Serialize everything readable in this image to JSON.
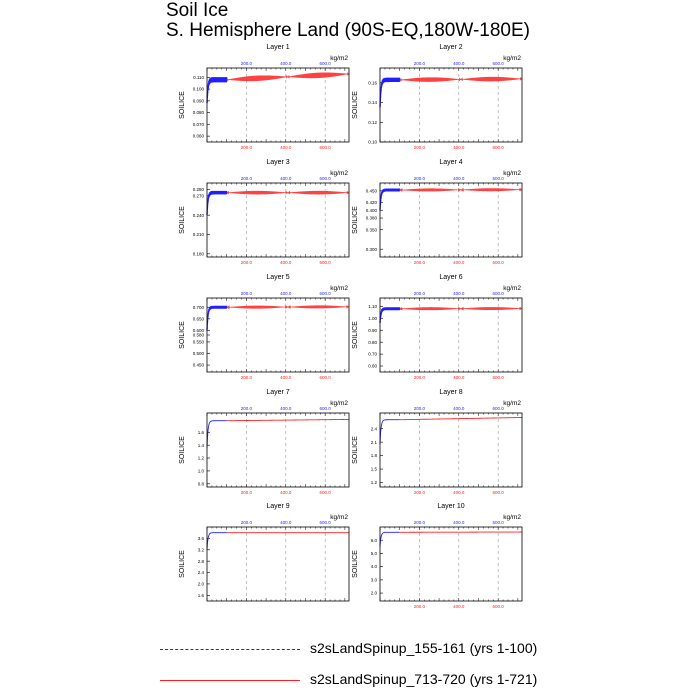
{
  "figure": {
    "title_line1": "Soil Ice",
    "title_line2": "S. Hemisphere Land (90S-EQ,180W-180E)",
    "colors": {
      "run1": "#1f1fff",
      "run2": "#ff2020",
      "axis": "#000000",
      "grid": "#9a9a9a"
    }
  },
  "legend": [
    {
      "label": "s2sLandSpinup_155-161 (yrs 1-100)",
      "style": "dashed",
      "color": "#1f1fff"
    },
    {
      "label": "s2sLandSpinup_713-720 (yrs 1-721)",
      "style": "solid",
      "color": "#ff2020"
    }
  ],
  "chart_data": [
    {
      "type": "line",
      "title": "Layer 1",
      "ylabel": "SOILICE",
      "top_axis_label": "kg/m2",
      "xlim": [
        0,
        721
      ],
      "top_xticks": [
        "200.0",
        "400.0",
        "600.0"
      ],
      "bottom_xticks": [
        "200.0",
        "400.0",
        "600.0"
      ],
      "ylim": [
        0.055,
        0.118
      ],
      "yticks": [
        "0.060",
        "0.070",
        "0.080",
        "0.090",
        "0.100",
        "0.110"
      ],
      "series": [
        {
          "name": "s2sLandSpinup_155-161",
          "start": 0.088,
          "end": 0.108
        },
        {
          "name": "s2sLandSpinup_713-720",
          "start": 0.108,
          "end": 0.113
        }
      ]
    },
    {
      "type": "line",
      "title": "Layer 2",
      "ylabel": "SOILICE",
      "top_axis_label": "kg/m2",
      "xlim": [
        0,
        721
      ],
      "top_xticks": [
        "200.0",
        "400.0",
        "600.0"
      ],
      "bottom_xticks": [
        "200.0",
        "400.0",
        "600.0"
      ],
      "ylim": [
        0.1,
        0.175
      ],
      "yticks": [
        "0.10",
        "0.12",
        "0.14",
        "0.16"
      ],
      "series": [
        {
          "name": "s2sLandSpinup_155-161",
          "start": 0.135,
          "end": 0.163
        },
        {
          "name": "s2sLandSpinup_713-720",
          "start": 0.163,
          "end": 0.164
        }
      ]
    },
    {
      "type": "line",
      "title": "Layer 3",
      "ylabel": "SOILICE",
      "top_axis_label": "kg/m2",
      "xlim": [
        0,
        721
      ],
      "top_xticks": [
        "200.0",
        "400.0",
        "600.0"
      ],
      "bottom_xticks": [
        "200.0",
        "400.0",
        "600.0"
      ],
      "ylim": [
        0.175,
        0.29
      ],
      "yticks": [
        "0.180",
        "0.210",
        "0.240",
        "0.270",
        "0.280"
      ],
      "series": [
        {
          "name": "s2sLandSpinup_155-161",
          "start": 0.24,
          "end": 0.275
        },
        {
          "name": "s2sLandSpinup_713-720",
          "start": 0.275,
          "end": 0.275
        }
      ]
    },
    {
      "type": "line",
      "title": "Layer 4",
      "ylabel": "SOILICE",
      "top_axis_label": "kg/m2",
      "xlim": [
        0,
        721
      ],
      "top_xticks": [
        "200.0",
        "400.0",
        "600.0"
      ],
      "bottom_xticks": [
        "200.0",
        "400.0",
        "600.0"
      ],
      "ylim": [
        0.28,
        0.47
      ],
      "yticks": [
        "0.300",
        "0.350",
        "0.380",
        "0.400",
        "0.420",
        "0.450"
      ],
      "series": [
        {
          "name": "s2sLandSpinup_155-161",
          "start": 0.4,
          "end": 0.452
        },
        {
          "name": "s2sLandSpinup_713-720",
          "start": 0.452,
          "end": 0.453
        }
      ]
    },
    {
      "type": "line",
      "title": "Layer 5",
      "ylabel": "SOILICE",
      "top_axis_label": "kg/m2",
      "xlim": [
        0,
        721
      ],
      "top_xticks": [
        "200.0",
        "400.0",
        "600.0"
      ],
      "bottom_xticks": [
        "200.0",
        "400.0",
        "600.0"
      ],
      "ylim": [
        0.42,
        0.74
      ],
      "yticks": [
        "0.450",
        "0.500",
        "0.550",
        "0.580",
        "0.600",
        "0.650",
        "0.700"
      ],
      "series": [
        {
          "name": "s2sLandSpinup_155-161",
          "start": 0.6,
          "end": 0.7
        },
        {
          "name": "s2sLandSpinup_713-720",
          "start": 0.7,
          "end": 0.702
        }
      ]
    },
    {
      "type": "line",
      "title": "Layer 6",
      "ylabel": "SOILICE",
      "top_axis_label": "kg/m2",
      "xlim": [
        0,
        721
      ],
      "top_xticks": [
        "200.0",
        "400.0",
        "600.0"
      ],
      "bottom_xticks": [
        "200.0",
        "400.0",
        "600.0"
      ],
      "ylim": [
        0.55,
        1.17
      ],
      "yticks": [
        "0.60",
        "0.70",
        "0.80",
        "0.90",
        "1.00",
        "1.10"
      ],
      "series": [
        {
          "name": "s2sLandSpinup_155-161",
          "start": 0.96,
          "end": 1.08
        },
        {
          "name": "s2sLandSpinup_713-720",
          "start": 1.08,
          "end": 1.082
        }
      ]
    },
    {
      "type": "line",
      "title": "Layer 7",
      "ylabel": "SOILICE",
      "top_axis_label": "kg/m2",
      "xlim": [
        0,
        721
      ],
      "top_xticks": [
        "200.0",
        "400.0",
        "600.0"
      ],
      "bottom_xticks": [
        "200.0",
        "400.0",
        "600.0"
      ],
      "ylim": [
        0.75,
        1.9
      ],
      "yticks": [
        "0.8",
        "1.0",
        "1.2",
        "1.4",
        "1.6"
      ],
      "series": [
        {
          "name": "s2sLandSpinup_155-161",
          "start": 1.35,
          "end": 1.78
        },
        {
          "name": "s2sLandSpinup_713-720",
          "start": 1.78,
          "end": 1.8
        }
      ]
    },
    {
      "type": "line",
      "title": "Layer 8",
      "ylabel": "SOILICE",
      "top_axis_label": "kg/m2",
      "xlim": [
        0,
        721
      ],
      "top_xticks": [
        "200.0",
        "400.0",
        "600.0"
      ],
      "bottom_xticks": [
        "200.0",
        "400.0",
        "600.0"
      ],
      "ylim": [
        1.1,
        2.75
      ],
      "yticks": [
        "1.2",
        "1.5",
        "1.8",
        "2.1",
        "2.4"
      ],
      "series": [
        {
          "name": "s2sLandSpinup_155-161",
          "start": 2.05,
          "end": 2.6
        },
        {
          "name": "s2sLandSpinup_713-720",
          "start": 2.6,
          "end": 2.65
        }
      ]
    },
    {
      "type": "line",
      "title": "Layer 9",
      "ylabel": "SOILICE",
      "top_axis_label": "kg/m2",
      "xlim": [
        0,
        721
      ],
      "top_xticks": [
        "200.0",
        "400.0",
        "600.0"
      ],
      "bottom_xticks": [],
      "ylim": [
        1.4,
        4.0
      ],
      "yticks": [
        "1.6",
        "2.0",
        "2.4",
        "2.8",
        "3.2",
        "3.6"
      ],
      "series": [
        {
          "name": "s2sLandSpinup_155-161",
          "start": 3.2,
          "end": 3.8
        },
        {
          "name": "s2sLandSpinup_713-720",
          "start": 3.8,
          "end": 3.8
        }
      ]
    },
    {
      "type": "line",
      "title": "Layer 10",
      "ylabel": "SOILICE",
      "top_axis_label": "kg/m2",
      "xlim": [
        0,
        721
      ],
      "top_xticks": [
        "200.0",
        "400.0",
        "600.0"
      ],
      "bottom_xticks": [
        "200.0",
        "400.0",
        "600.0"
      ],
      "ylim": [
        1.4,
        7.0
      ],
      "yticks": [
        "2.0",
        "3.0",
        "4.0",
        "5.0",
        "6.0"
      ],
      "series": [
        {
          "name": "s2sLandSpinup_155-161",
          "start": 5.5,
          "end": 6.6
        },
        {
          "name": "s2sLandSpinup_713-720",
          "start": 6.6,
          "end": 6.62
        }
      ]
    }
  ]
}
